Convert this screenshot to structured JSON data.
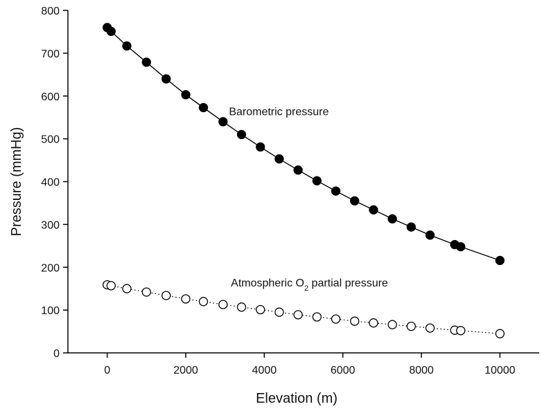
{
  "chart_data": {
    "type": "scatter",
    "xlabel": "Elevation (m)",
    "ylabel": "Pressure (mmHg)",
    "xlim": [
      -1000,
      11000
    ],
    "ylim": [
      0,
      800
    ],
    "xticks": [
      0,
      2000,
      4000,
      6000,
      8000,
      10000
    ],
    "yticks": [
      0,
      100,
      200,
      300,
      400,
      500,
      600,
      700,
      800
    ],
    "grid": false,
    "legend": "none",
    "series": [
      {
        "marker": "filled-circle",
        "line": "solid",
        "color": "#000000",
        "x": [
          0,
          100,
          500,
          1000,
          1500,
          2000,
          2450,
          2950,
          3420,
          3900,
          4380,
          4860,
          5340,
          5820,
          6300,
          6780,
          7260,
          7740,
          8220,
          8848,
          9000,
          10000
        ],
        "y": [
          760,
          751,
          717,
          679,
          640,
          603,
          573,
          540,
          510,
          481,
          453,
          427,
          402,
          378,
          355,
          334,
          313,
          294,
          275,
          253,
          248,
          216
        ]
      },
      {
        "marker": "open-circle",
        "line": "dotted",
        "color": "#000000",
        "x": [
          0,
          100,
          500,
          1000,
          1500,
          2000,
          2450,
          2950,
          3420,
          3900,
          4380,
          4860,
          5340,
          5820,
          6300,
          6780,
          7260,
          7740,
          8220,
          8848,
          9000,
          10000
        ],
        "y": [
          159,
          157,
          150,
          142,
          134,
          126,
          120,
          113,
          107,
          101,
          95,
          89,
          84,
          79,
          74,
          70,
          66,
          62,
          58,
          53,
          52,
          45
        ]
      }
    ],
    "annotations": [
      {
        "id": "baro",
        "text": "Barometric pressure",
        "x": 3100,
        "y": 555
      },
      {
        "id": "o2",
        "text": "Atmospheric O",
        "sub": "2",
        "tail": " partial pressure",
        "x": 3150,
        "y": 155
      }
    ]
  }
}
